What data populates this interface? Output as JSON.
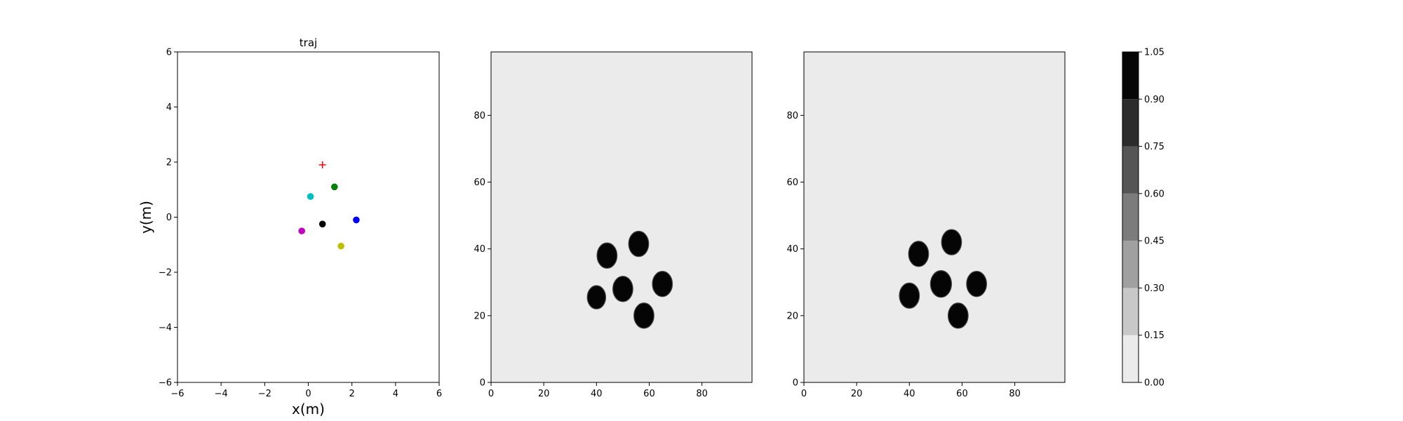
{
  "colors": {
    "panel_bg": "#ebebeb",
    "blob": "#050505",
    "cmap": [
      "#ebebeb",
      "#c8c8c8",
      "#a0a0a0",
      "#7c7c7c",
      "#555555",
      "#2c2c2c",
      "#060606"
    ]
  },
  "chart_data": [
    {
      "type": "scatter",
      "title": "traj",
      "xlabel": "x(m)",
      "ylabel": "y(m)",
      "xlim": [
        -6,
        6
      ],
      "ylim": [
        -6,
        6
      ],
      "xticks": [
        -6,
        -4,
        -2,
        0,
        2,
        4,
        6
      ],
      "yticks": [
        -6,
        -4,
        -2,
        0,
        2,
        4,
        6
      ],
      "grid": false,
      "series": [
        {
          "marker": "+",
          "color": "#ff0000",
          "points": [
            [
              0.65,
              1.9
            ]
          ]
        },
        {
          "marker": "o",
          "color": "#008000",
          "points": [
            [
              1.2,
              1.1
            ]
          ]
        },
        {
          "marker": "o",
          "color": "#00bfbf",
          "points": [
            [
              0.1,
              0.75
            ]
          ]
        },
        {
          "marker": "o",
          "color": "#0000ff",
          "points": [
            [
              2.2,
              -0.1
            ]
          ]
        },
        {
          "marker": "o",
          "color": "#000000",
          "points": [
            [
              0.65,
              -0.25
            ]
          ]
        },
        {
          "marker": "o",
          "color": "#bf00bf",
          "points": [
            [
              -0.3,
              -0.5
            ]
          ]
        },
        {
          "marker": "o",
          "color": "#bfbf00",
          "points": [
            [
              1.5,
              -1.05
            ]
          ]
        }
      ]
    },
    {
      "type": "heatmap",
      "xlim": [
        0,
        99
      ],
      "ylim": [
        0,
        99
      ],
      "xticks": [
        0,
        20,
        40,
        60,
        80
      ],
      "yticks": [
        0,
        20,
        40,
        60,
        80
      ],
      "background_value": 0.0,
      "blobs": [
        {
          "x": 44,
          "y": 38,
          "r": 3.8
        },
        {
          "x": 56,
          "y": 41.5,
          "r": 3.8
        },
        {
          "x": 65,
          "y": 29.5,
          "r": 3.8
        },
        {
          "x": 50,
          "y": 28,
          "r": 3.8
        },
        {
          "x": 40,
          "y": 25.5,
          "r": 3.5
        },
        {
          "x": 58,
          "y": 20,
          "r": 3.8
        }
      ]
    },
    {
      "type": "heatmap",
      "xlim": [
        0,
        99
      ],
      "ylim": [
        0,
        99
      ],
      "xticks": [
        0,
        20,
        40,
        60,
        80
      ],
      "yticks": [
        0,
        20,
        40,
        60,
        80
      ],
      "background_value": 0.0,
      "blobs": [
        {
          "x": 43.5,
          "y": 38.5,
          "r": 3.8
        },
        {
          "x": 56,
          "y": 42,
          "r": 3.8
        },
        {
          "x": 65.5,
          "y": 29.5,
          "r": 3.8
        },
        {
          "x": 52,
          "y": 29.5,
          "r": 4.0
        },
        {
          "x": 40,
          "y": 26,
          "r": 3.8
        },
        {
          "x": 58.5,
          "y": 20,
          "r": 3.8
        }
      ]
    },
    {
      "type": "colorbar",
      "levels": [
        0.0,
        0.15,
        0.3,
        0.45,
        0.6,
        0.75,
        0.9,
        1.05
      ],
      "tick_labels": [
        "0.00",
        "0.15",
        "0.30",
        "0.45",
        "0.60",
        "0.75",
        "0.90",
        "1.05"
      ]
    }
  ]
}
